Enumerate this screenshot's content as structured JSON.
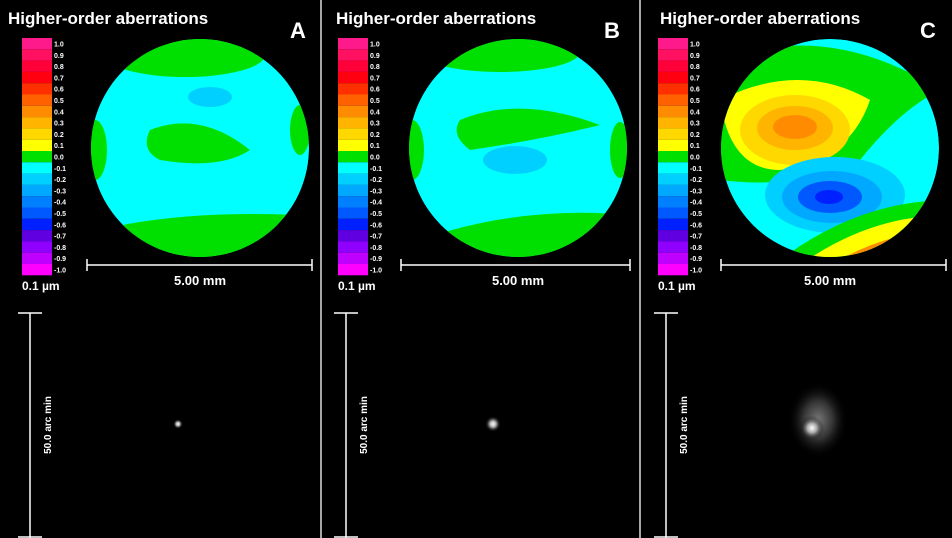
{
  "colorbar": {
    "labels": [
      "1.0",
      "0.9",
      "0.8",
      "0.7",
      "0.6",
      "0.5",
      "0.4",
      "0.3",
      "0.2",
      "0.1",
      "0.0",
      "-0.1",
      "-0.2",
      "-0.3",
      "-0.4",
      "-0.5",
      "-0.6",
      "-0.7",
      "-0.8",
      "-0.9",
      "-1.0"
    ],
    "colors": [
      "#ff1a8c",
      "#ff1060",
      "#ff0038",
      "#ff0010",
      "#ff3000",
      "#ff6000",
      "#ff8c00",
      "#ffb400",
      "#ffd800",
      "#ffff00",
      "#00e000",
      "#00ffff",
      "#00d0ff",
      "#00a8ff",
      "#0080ff",
      "#0058ff",
      "#0020ff",
      "#6000e0",
      "#9000ff",
      "#c000ff",
      "#ff00ff"
    ]
  },
  "panels": [
    {
      "title": "Higher-order aberrations",
      "letter": "A",
      "unit": "0.1 µm",
      "pupil_scale": "5.00 mm",
      "psf_scale": "50.0 arc min"
    },
    {
      "title": "Higher-order aberrations",
      "letter": "B",
      "unit": "0.1 µm",
      "pupil_scale": "5.00 mm",
      "psf_scale": "50.0 arc min"
    },
    {
      "title": "Higher-order aberrations",
      "letter": "C",
      "unit": "0.1 µm",
      "pupil_scale": "5.00 mm",
      "psf_scale": "50.0 arc min"
    }
  ]
}
